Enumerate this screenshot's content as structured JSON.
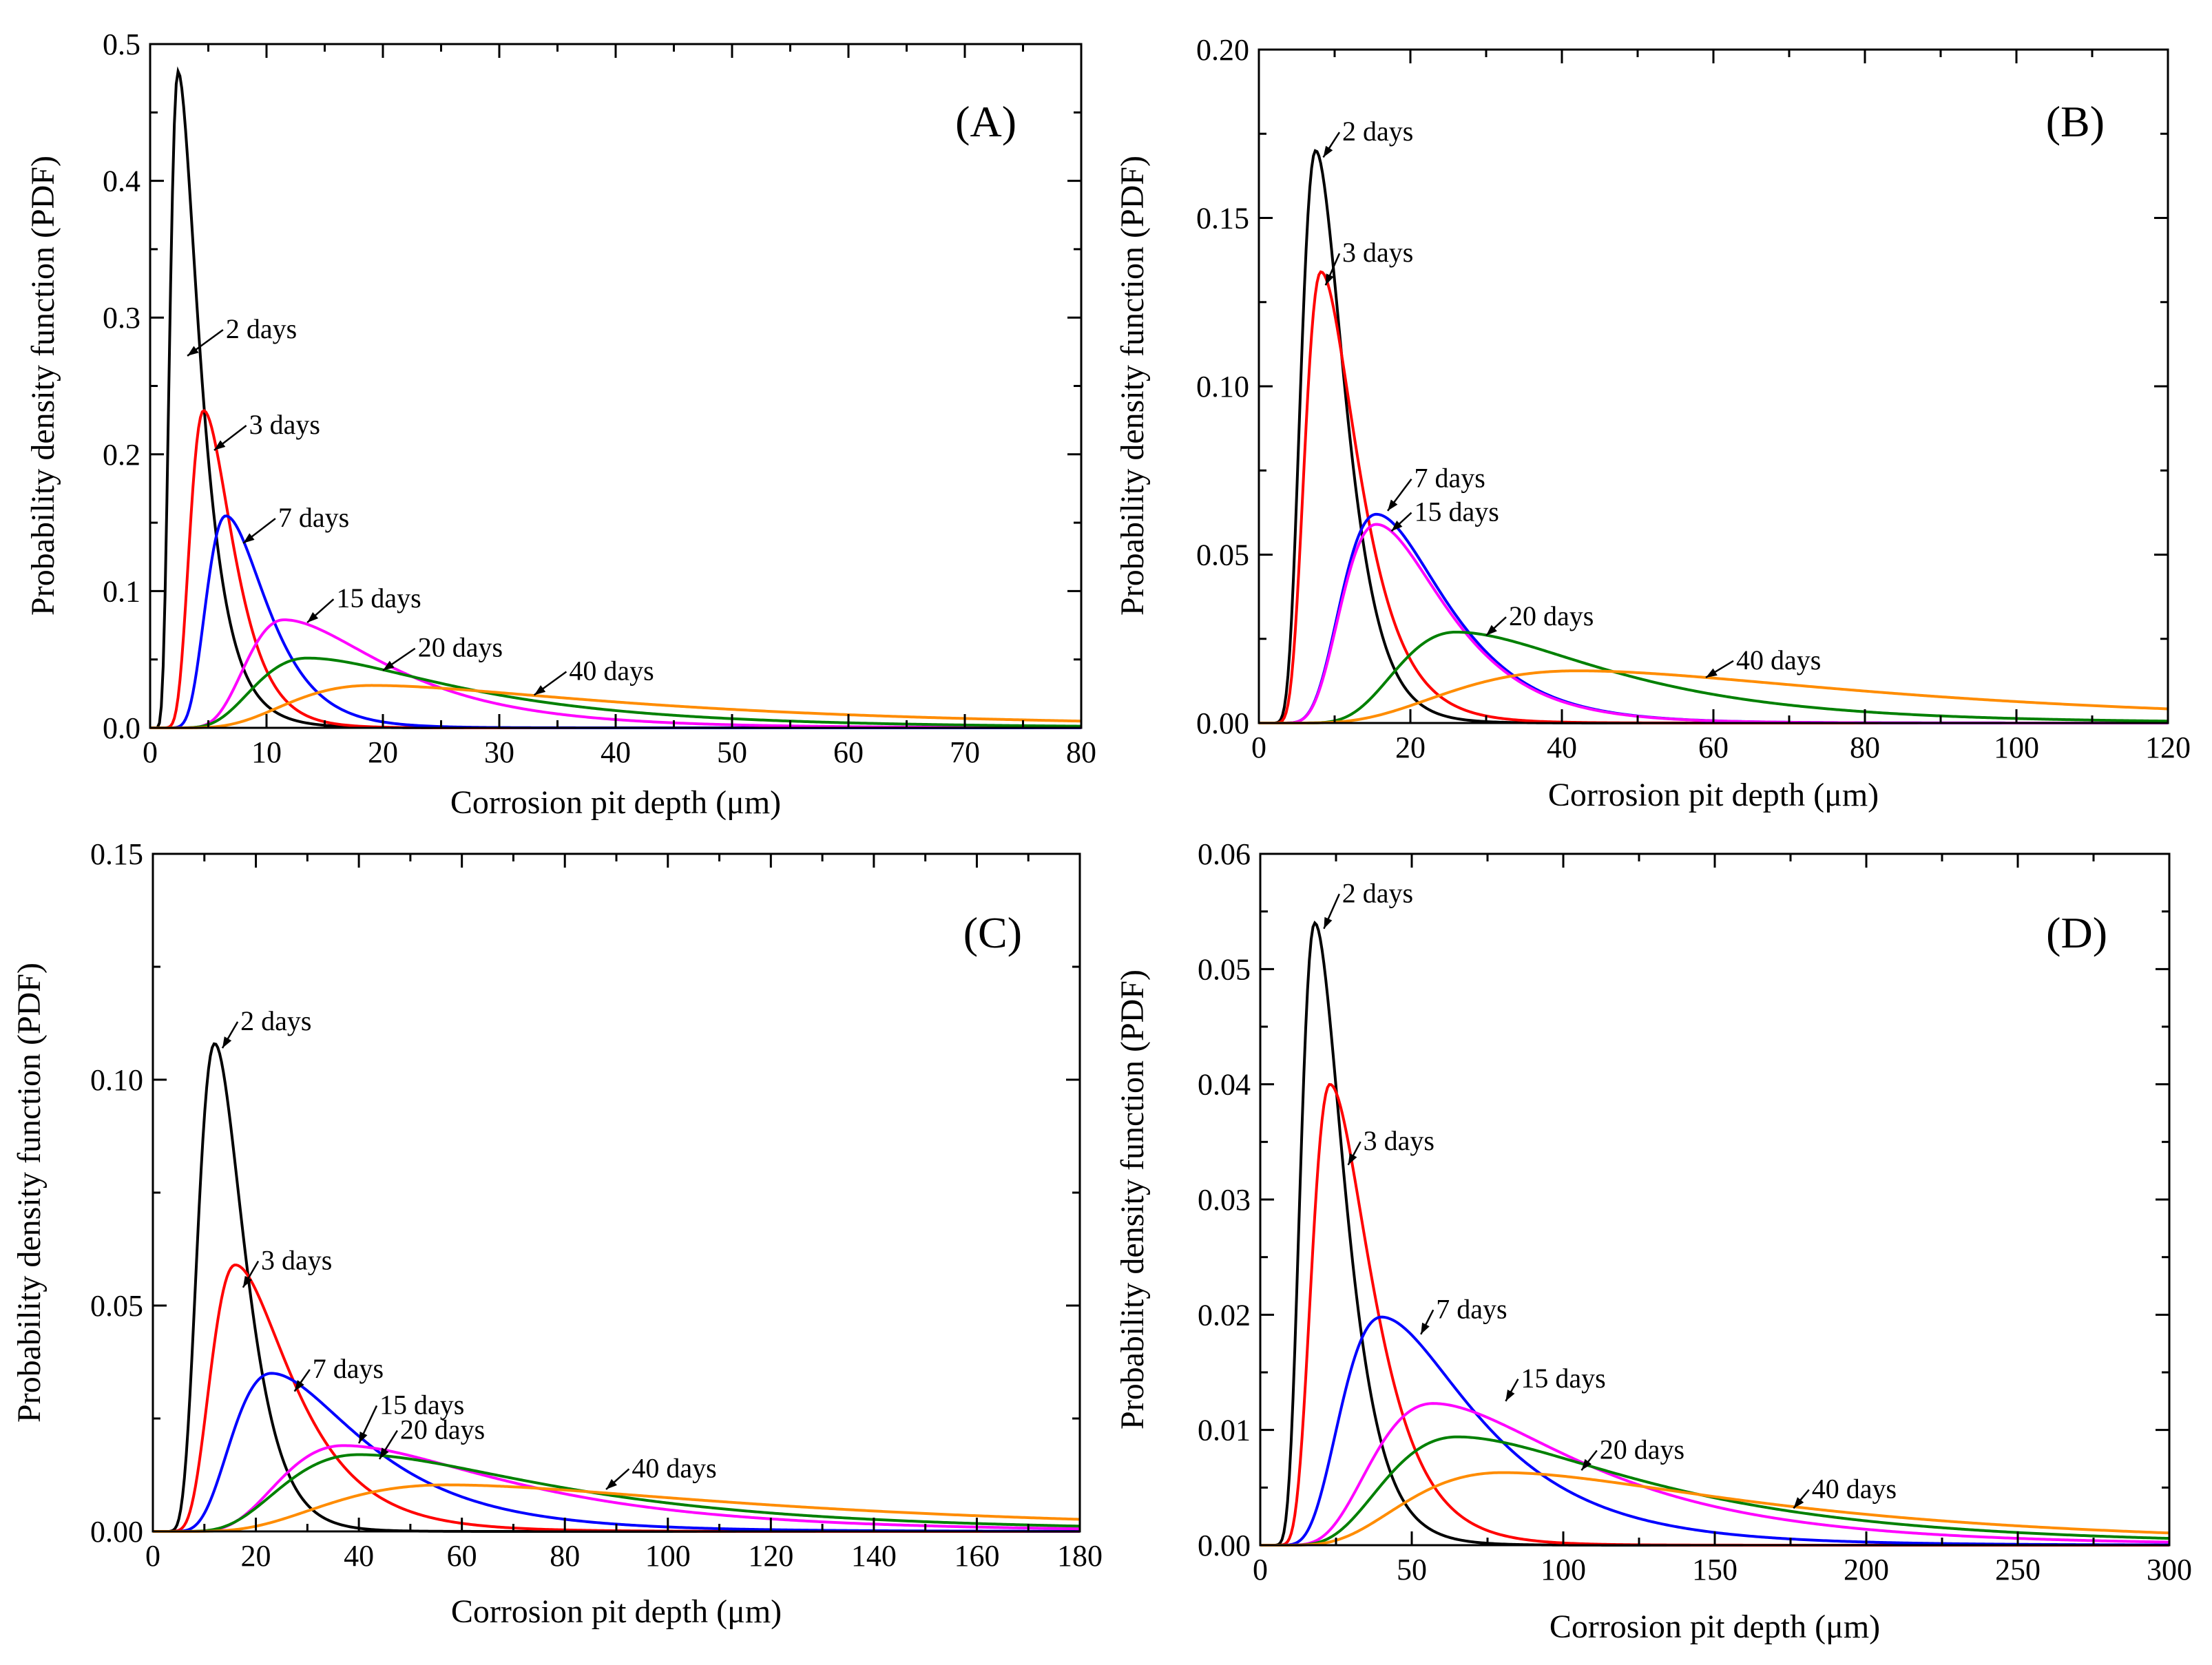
{
  "figure": {
    "chart_data": [
      {
        "panel": "(A)",
        "type": "line",
        "xlabel": "Corrosion pit depth (μm)",
        "ylabel": "Probability density function (PDF)",
        "xlim": [
          0,
          80
        ],
        "ylim": [
          0,
          0.5
        ],
        "xticks": [
          "0",
          "10",
          "20",
          "30",
          "40",
          "50",
          "60",
          "70",
          "80"
        ],
        "yticks": [
          "0.0",
          "0.1",
          "0.2",
          "0.3",
          "0.4",
          "0.5"
        ],
        "series": [
          {
            "name": "2 days",
            "color": "#000000",
            "mode": 2.4,
            "peak": 0.48,
            "left": 0.35,
            "right": 0.55
          },
          {
            "name": "3 days",
            "color": "#ff0000",
            "mode": 4.6,
            "peak": 0.232,
            "left": 0.3,
            "right": 0.42
          },
          {
            "name": "7 days",
            "color": "#0000ff",
            "mode": 6.5,
            "peak": 0.155,
            "left": 0.3,
            "right": 0.42
          },
          {
            "name": "15 days",
            "color": "#ff00ff",
            "mode": 11.5,
            "peak": 0.079,
            "left": 0.33,
            "right": 0.55
          },
          {
            "name": "20 days",
            "color": "#008000",
            "mode": 13.5,
            "peak": 0.051,
            "left": 0.4,
            "right": 0.65
          },
          {
            "name": "40 days",
            "color": "#ff8c00",
            "mode": 19,
            "peak": 0.031,
            "left": 0.45,
            "right": 0.75
          }
        ],
        "labels": [
          {
            "text": "2 days",
            "series": "2 days",
            "x": 6.5,
            "y": 0.285,
            "ax": 3.2,
            "ay": 0.272
          },
          {
            "text": "3 days",
            "series": "3 days",
            "x": 8.5,
            "y": 0.215,
            "ax": 5.5,
            "ay": 0.203
          },
          {
            "text": "7 days",
            "series": "7 days",
            "x": 11,
            "y": 0.147,
            "ax": 8,
            "ay": 0.135
          },
          {
            "text": "15 days",
            "series": "15 days",
            "x": 16,
            "y": 0.088,
            "ax": 13.5,
            "ay": 0.077
          },
          {
            "text": "20 days",
            "series": "20 days",
            "x": 23,
            "y": 0.052,
            "ax": 20,
            "ay": 0.042
          },
          {
            "text": "40 days",
            "series": "40 days",
            "x": 36,
            "y": 0.035,
            "ax": 33,
            "ay": 0.024
          }
        ]
      },
      {
        "panel": "(B)",
        "type": "line",
        "xlabel": "Corrosion pit depth (μm)",
        "ylabel": "Probability density function (PDF)",
        "xlim": [
          0,
          120
        ],
        "ylim": [
          0,
          0.2
        ],
        "xticks": [
          "0",
          "20",
          "40",
          "60",
          "80",
          "100",
          "120"
        ],
        "yticks": [
          "0.00",
          "0.05",
          "0.10",
          "0.15",
          "0.20"
        ],
        "series": [
          {
            "name": "2 days",
            "color": "#000000",
            "mode": 7.5,
            "peak": 0.17,
            "left": 0.3,
            "right": 0.4
          },
          {
            "name": "3 days",
            "color": "#ff0000",
            "mode": 8.2,
            "peak": 0.134,
            "left": 0.3,
            "right": 0.45
          },
          {
            "name": "7 days",
            "color": "#0000ff",
            "mode": 15.5,
            "peak": 0.062,
            "left": 0.35,
            "right": 0.45
          },
          {
            "name": "15 days",
            "color": "#ff00ff",
            "mode": 15.5,
            "peak": 0.059,
            "left": 0.35,
            "right": 0.45
          },
          {
            "name": "20 days",
            "color": "#008000",
            "mode": 26,
            "peak": 0.027,
            "left": 0.35,
            "right": 0.55
          },
          {
            "name": "40 days",
            "color": "#ff8c00",
            "mode": 42,
            "peak": 0.0155,
            "left": 0.5,
            "right": 0.65
          }
        ],
        "labels": [
          {
            "text": "2 days",
            "series": "2 days",
            "x": 11,
            "y": 0.173,
            "ax": 8.5,
            "ay": 0.168
          },
          {
            "text": "3 days",
            "series": "3 days",
            "x": 11,
            "y": 0.137,
            "ax": 8.8,
            "ay": 0.13
          },
          {
            "text": "7 days",
            "series": "7 days",
            "x": 20.5,
            "y": 0.07,
            "ax": 17,
            "ay": 0.063
          },
          {
            "text": "15 days",
            "series": "15 days",
            "x": 20.5,
            "y": 0.06,
            "ax": 17.5,
            "ay": 0.057
          },
          {
            "text": "20 days",
            "series": "20 days",
            "x": 33,
            "y": 0.029,
            "ax": 30,
            "ay": 0.026
          },
          {
            "text": "40 days",
            "series": "40 days",
            "x": 63,
            "y": 0.016,
            "ax": 59,
            "ay": 0.0135
          }
        ]
      },
      {
        "panel": "(C)",
        "type": "line",
        "xlabel": "Corrosion pit depth (μm)",
        "ylabel": "Probability density function (PDF)",
        "xlim": [
          0,
          180
        ],
        "ylim": [
          0,
          0.15
        ],
        "xticks": [
          "0",
          "20",
          "40",
          "60",
          "80",
          "100",
          "120",
          "140",
          "160",
          "180"
        ],
        "yticks": [
          "0.00",
          "0.05",
          "0.10",
          "0.15"
        ],
        "series": [
          {
            "name": "2 days",
            "color": "#000000",
            "mode": 12,
            "peak": 0.108,
            "left": 0.32,
            "right": 0.38
          },
          {
            "name": "3 days",
            "color": "#ff0000",
            "mode": 16,
            "peak": 0.059,
            "left": 0.35,
            "right": 0.5
          },
          {
            "name": "7 days",
            "color": "#0000ff",
            "mode": 23,
            "peak": 0.035,
            "left": 0.4,
            "right": 0.55
          },
          {
            "name": "15 days",
            "color": "#ff00ff",
            "mode": 37,
            "peak": 0.019,
            "left": 0.4,
            "right": 0.6
          },
          {
            "name": "20 days",
            "color": "#008000",
            "mode": 40,
            "peak": 0.017,
            "left": 0.45,
            "right": 0.65
          },
          {
            "name": "40 days",
            "color": "#ff8c00",
            "mode": 57,
            "peak": 0.0103,
            "left": 0.5,
            "right": 0.7
          }
        ],
        "labels": [
          {
            "text": "2 days",
            "series": "2 days",
            "x": 17,
            "y": 0.111,
            "ax": 13.5,
            "ay": 0.107
          },
          {
            "text": "3 days",
            "series": "3 days",
            "x": 21,
            "y": 0.058,
            "ax": 17.5,
            "ay": 0.054
          },
          {
            "text": "7 days",
            "series": "7 days",
            "x": 31,
            "y": 0.034,
            "ax": 27.5,
            "ay": 0.031
          },
          {
            "text": "15 days",
            "series": "15 days",
            "x": 44,
            "y": 0.026,
            "ax": 40,
            "ay": 0.0195
          },
          {
            "text": "20 days",
            "series": "20 days",
            "x": 48,
            "y": 0.0205,
            "ax": 44,
            "ay": 0.016
          },
          {
            "text": "40 days",
            "series": "40 days",
            "x": 93,
            "y": 0.012,
            "ax": 88,
            "ay": 0.0093
          }
        ]
      },
      {
        "panel": "(D)",
        "type": "line",
        "xlabel": "Corrosion pit depth (μm)",
        "ylabel": "Probability density function (PDF)",
        "xlim": [
          0,
          300
        ],
        "ylim": [
          0,
          0.06
        ],
        "xticks": [
          "0",
          "50",
          "100",
          "150",
          "200",
          "250",
          "300"
        ],
        "yticks": [
          "0.00",
          "0.01",
          "0.02",
          "0.03",
          "0.04",
          "0.05",
          "0.06"
        ],
        "series": [
          {
            "name": "2 days",
            "color": "#000000",
            "mode": 18,
            "peak": 0.054,
            "left": 0.3,
            "right": 0.42
          },
          {
            "name": "3 days",
            "color": "#ff0000",
            "mode": 23,
            "peak": 0.04,
            "left": 0.3,
            "right": 0.45
          },
          {
            "name": "7 days",
            "color": "#0000ff",
            "mode": 40,
            "peak": 0.0198,
            "left": 0.4,
            "right": 0.55
          },
          {
            "name": "15 days",
            "color": "#ff00ff",
            "mode": 57,
            "peak": 0.0123,
            "left": 0.43,
            "right": 0.6
          },
          {
            "name": "20 days",
            "color": "#008000",
            "mode": 65,
            "peak": 0.0094,
            "left": 0.45,
            "right": 0.65
          },
          {
            "name": "40 days",
            "color": "#ff8c00",
            "mode": 80,
            "peak": 0.0063,
            "left": 0.5,
            "right": 0.7
          }
        ],
        "labels": [
          {
            "text": "2 days",
            "series": "2 days",
            "x": 27,
            "y": 0.0558,
            "ax": 21,
            "ay": 0.0535
          },
          {
            "text": "3 days",
            "series": "3 days",
            "x": 34,
            "y": 0.0343,
            "ax": 29,
            "ay": 0.033
          },
          {
            "text": "7 days",
            "series": "7 days",
            "x": 58,
            "y": 0.0197,
            "ax": 53,
            "ay": 0.0183
          },
          {
            "text": "15 days",
            "series": "15 days",
            "x": 86,
            "y": 0.0137,
            "ax": 81,
            "ay": 0.0125
          },
          {
            "text": "20 days",
            "series": "20 days",
            "x": 112,
            "y": 0.0075,
            "ax": 106,
            "ay": 0.0065
          },
          {
            "text": "40 days",
            "series": "40 days",
            "x": 182,
            "y": 0.0041,
            "ax": 176,
            "ay": 0.0032
          }
        ]
      }
    ]
  }
}
